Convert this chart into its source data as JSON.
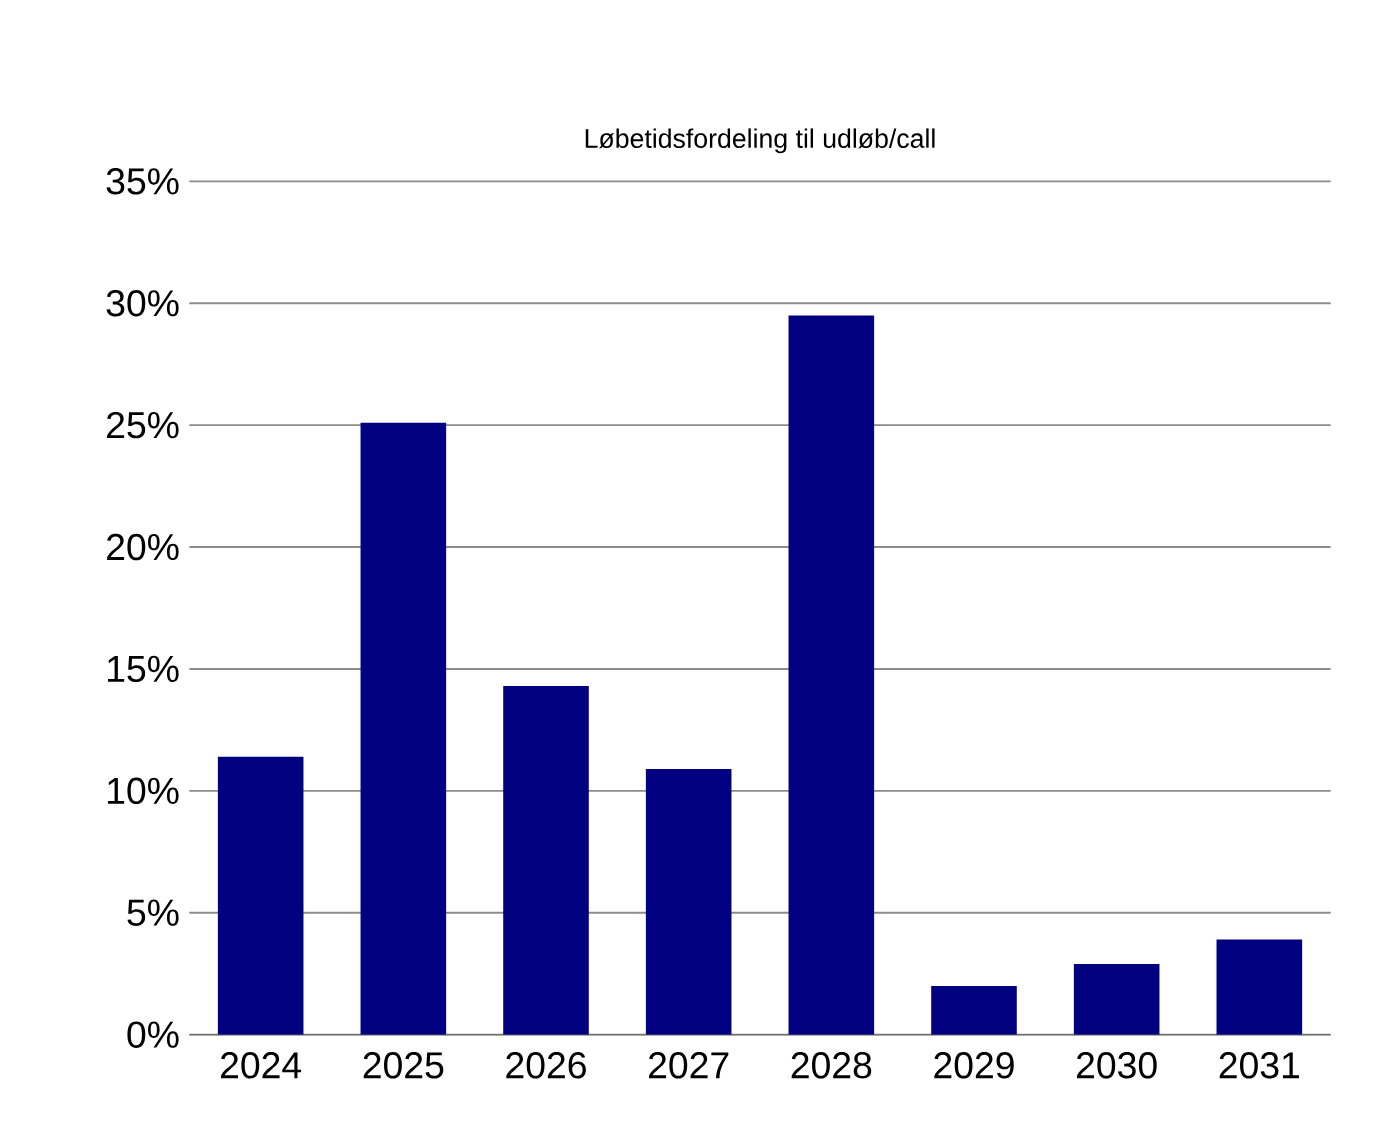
{
  "chart_data": {
    "type": "bar",
    "title": "Løbetidsfordeling til udløb/call",
    "categories": [
      "2024",
      "2025",
      "2026",
      "2027",
      "2028",
      "2029",
      "2030",
      "2031"
    ],
    "values": [
      11.4,
      25.1,
      14.3,
      10.9,
      29.5,
      2.0,
      2.9,
      3.9
    ],
    "color": "#000080",
    "ylim": [
      0,
      35
    ],
    "yticks": [
      {
        "value": 0,
        "label": "0%"
      },
      {
        "value": 5,
        "label": "5%"
      },
      {
        "value": 10,
        "label": "10%"
      },
      {
        "value": 15,
        "label": "15%"
      },
      {
        "value": 20,
        "label": "20%"
      },
      {
        "value": 25,
        "label": "25%"
      },
      {
        "value": 30,
        "label": "30%"
      },
      {
        "value": 35,
        "label": "35%"
      }
    ],
    "grid": "y"
  }
}
